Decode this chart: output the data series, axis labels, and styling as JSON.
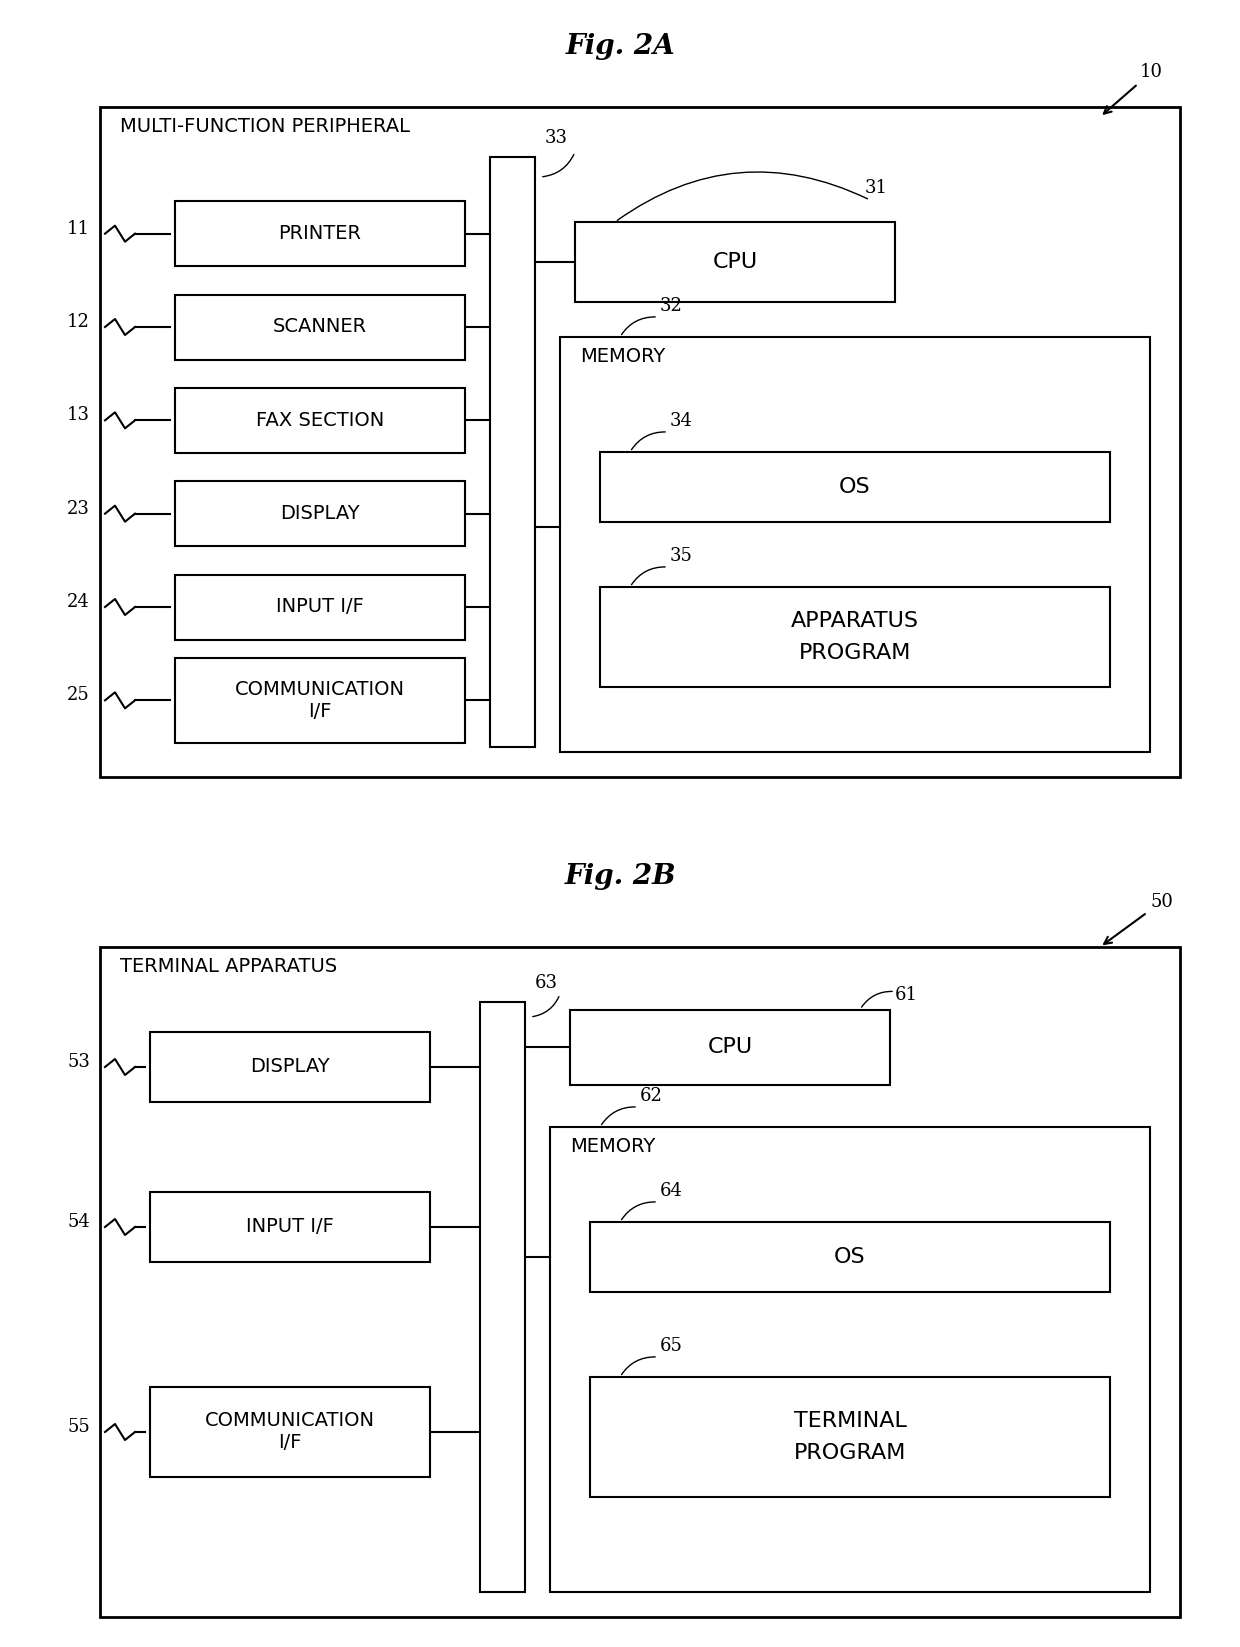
{
  "fig_title_A": "Fig. 2A",
  "fig_title_B": "Fig. 2B",
  "bg_color": "#ffffff",
  "figA": {
    "outer_label": "10",
    "outer_box_label": "MULTI-FUNCTION PERIPHERAL",
    "left_boxes": [
      {
        "label": "PRINTER",
        "ref": "11"
      },
      {
        "label": "SCANNER",
        "ref": "12"
      },
      {
        "label": "FAX SECTION",
        "ref": "13"
      },
      {
        "label": "DISPLAY",
        "ref": "23"
      },
      {
        "label": "INPUT I/F",
        "ref": "24"
      },
      {
        "label": "COMMUNICATION\nI/F",
        "ref": "25"
      }
    ],
    "bus_label": "33",
    "cpu_label": "CPU",
    "cpu_ref": "31",
    "mem_label": "MEMORY",
    "mem_ref": "32",
    "os_label": "OS",
    "os_ref": "34",
    "prog_label": "APPARATUS\nPROGRAM",
    "prog_ref": "35"
  },
  "figB": {
    "outer_label": "50",
    "outer_box_label": "TERMINAL APPARATUS",
    "left_boxes": [
      {
        "label": "DISPLAY",
        "ref": "53"
      },
      {
        "label": "INPUT I/F",
        "ref": "54"
      },
      {
        "label": "COMMUNICATION\nI/F",
        "ref": "55"
      }
    ],
    "bus_label": "63",
    "cpu_label": "CPU",
    "cpu_ref": "61",
    "mem_label": "MEMORY",
    "mem_ref": "62",
    "os_label": "OS",
    "os_ref": "64",
    "prog_label": "TERMINAL\nPROGRAM",
    "prog_ref": "65"
  }
}
